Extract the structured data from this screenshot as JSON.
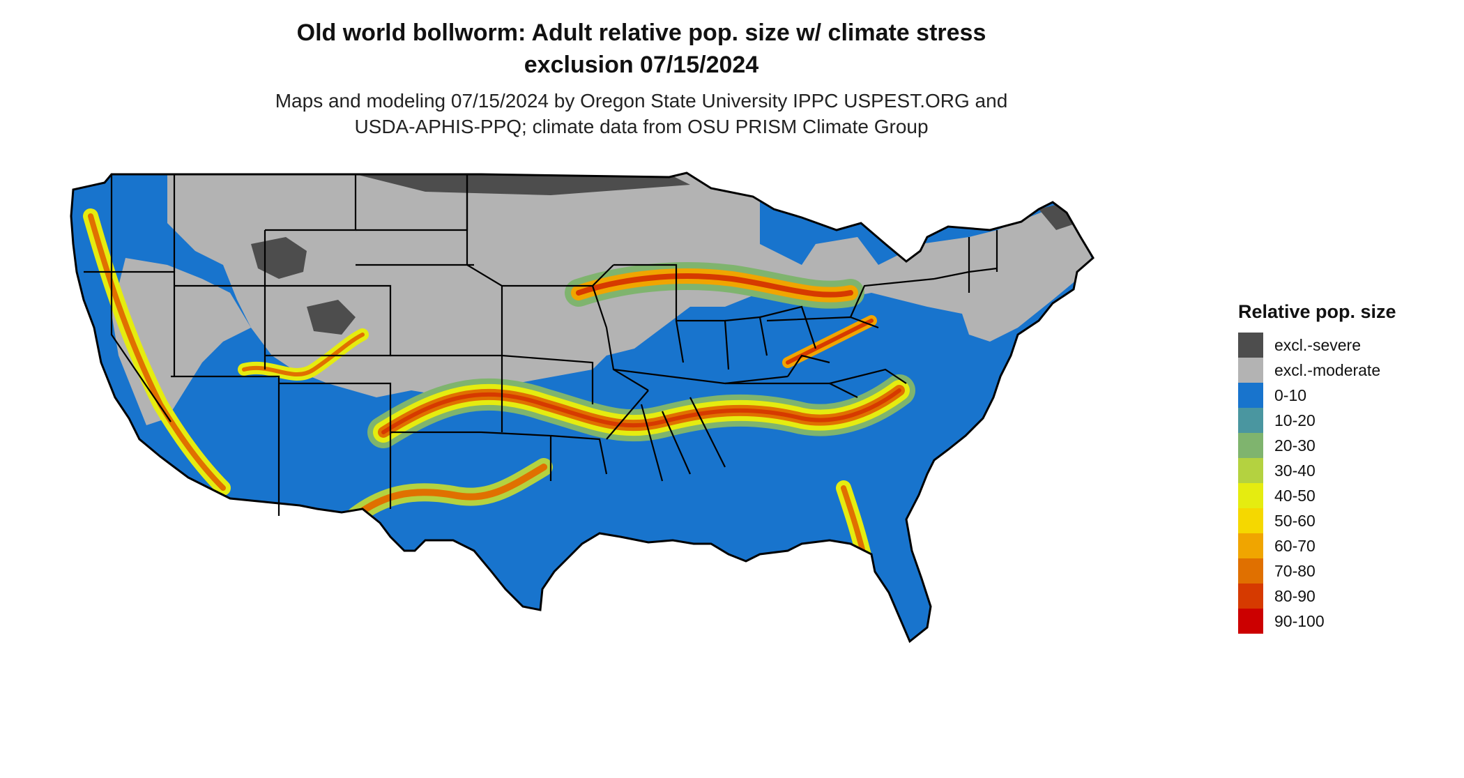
{
  "title": {
    "line1": "Old world bollworm: Adult relative pop. size w/ climate stress",
    "line2": "exclusion 07/15/2024"
  },
  "subtitle": {
    "line1": "Maps and modeling 07/15/2024 by Oregon State University IPPC USPEST.ORG and",
    "line2": "USDA-APHIS-PPQ; climate data from OSU PRISM Climate Group"
  },
  "legend": {
    "title": "Relative pop. size",
    "items": [
      {
        "label": "excl.-severe",
        "color": "#4d4d4d"
      },
      {
        "label": "excl.-moderate",
        "color": "#b3b3b3"
      },
      {
        "label": "0-10",
        "color": "#1874cd"
      },
      {
        "label": "10-20",
        "color": "#4a96a0"
      },
      {
        "label": "20-30",
        "color": "#7fb46e"
      },
      {
        "label": "30-40",
        "color": "#b4d240"
      },
      {
        "label": "40-50",
        "color": "#e5ec10"
      },
      {
        "label": "50-60",
        "color": "#f5d800"
      },
      {
        "label": "60-70",
        "color": "#f0a500"
      },
      {
        "label": "70-80",
        "color": "#e07000"
      },
      {
        "label": "80-90",
        "color": "#d63a00"
      },
      {
        "label": "90-100",
        "color": "#cc0000"
      }
    ]
  }
}
